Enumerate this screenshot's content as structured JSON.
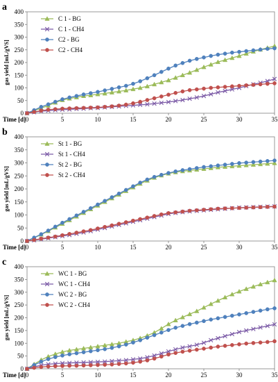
{
  "chart_data": [
    {
      "panel": "a",
      "type": "line",
      "xlabel": "Time [d]",
      "ylabel": "gas yield [mL/gVS]",
      "xlim": [
        0,
        35
      ],
      "ylim": [
        0,
        400
      ],
      "xticks": [
        0,
        5,
        10,
        15,
        20,
        25,
        30,
        35
      ],
      "yticks": [
        0,
        50,
        100,
        150,
        200,
        250,
        300,
        350,
        400
      ],
      "legend_position": "top-left",
      "x": [
        0,
        1,
        2,
        3,
        4,
        5,
        6,
        7,
        8,
        9,
        10,
        11,
        12,
        13,
        14,
        15,
        16,
        17,
        18,
        19,
        20,
        21,
        22,
        23,
        24,
        25,
        26,
        27,
        28,
        29,
        30,
        31,
        32,
        33,
        34,
        35
      ],
      "series": [
        {
          "name": "C 1 - BG",
          "color": "#9bbb59",
          "marker": "triangle",
          "values": [
            0,
            10,
            20,
            30,
            42,
            52,
            58,
            63,
            68,
            71,
            75,
            78,
            82,
            86,
            90,
            95,
            100,
            106,
            114,
            122,
            130,
            140,
            150,
            160,
            171,
            182,
            192,
            202,
            210,
            218,
            226,
            235,
            243,
            251,
            258,
            265
          ]
        },
        {
          "name": "C 1 - CH4",
          "color": "#7b5aa6",
          "marker": "x",
          "values": [
            0,
            4,
            8,
            10,
            12,
            14,
            15,
            17,
            18,
            20,
            21,
            23,
            25,
            27,
            29,
            31,
            33,
            35,
            38,
            41,
            44,
            48,
            52,
            57,
            62,
            68,
            75,
            82,
            88,
            94,
            100,
            107,
            114,
            120,
            127,
            135
          ]
        },
        {
          "name": "C2 - BG",
          "color": "#4f81bd",
          "marker": "circle",
          "values": [
            0,
            12,
            25,
            35,
            45,
            55,
            62,
            68,
            74,
            79,
            84,
            90,
            96,
            102,
            108,
            116,
            126,
            138,
            150,
            163,
            176,
            188,
            198,
            207,
            214,
            220,
            226,
            231,
            235,
            239,
            242,
            245,
            248,
            251,
            254,
            256
          ]
        },
        {
          "name": "C2 - CH4",
          "color": "#c0504d",
          "marker": "circle",
          "values": [
            0,
            5,
            10,
            14,
            16,
            18,
            19,
            20,
            21,
            22,
            23,
            25,
            27,
            30,
            34,
            39,
            45,
            52,
            59,
            66,
            73,
            80,
            86,
            91,
            94,
            97,
            100,
            102,
            104,
            106,
            108,
            110,
            112,
            114,
            116,
            118
          ]
        }
      ]
    },
    {
      "panel": "b",
      "type": "line",
      "xlabel": "Time [d]",
      "ylabel": "gas yield [mL/gVS]",
      "xlim": [
        0,
        35
      ],
      "ylim": [
        0,
        400
      ],
      "xticks": [
        0,
        5,
        10,
        15,
        20,
        25,
        30,
        35
      ],
      "yticks": [
        0,
        50,
        100,
        150,
        200,
        250,
        300,
        350,
        400
      ],
      "legend_position": "top-left",
      "x": [
        0,
        1,
        2,
        3,
        4,
        5,
        6,
        7,
        8,
        9,
        10,
        11,
        12,
        13,
        14,
        15,
        16,
        17,
        18,
        19,
        20,
        21,
        22,
        23,
        24,
        25,
        26,
        27,
        28,
        29,
        30,
        31,
        32,
        33,
        34,
        35
      ],
      "series": [
        {
          "name": "St 1 - BG",
          "color": "#9bbb59",
          "marker": "triangle",
          "values": [
            0,
            12,
            25,
            38,
            52,
            66,
            80,
            94,
            108,
            122,
            136,
            150,
            164,
            178,
            192,
            206,
            220,
            232,
            243,
            252,
            259,
            264,
            268,
            271,
            274,
            277,
            280,
            283,
            285,
            287,
            289,
            291,
            293,
            295,
            297,
            299
          ]
        },
        {
          "name": "St 1 - CH4",
          "color": "#7b5aa6",
          "marker": "x",
          "values": [
            0,
            3,
            7,
            11,
            15,
            19,
            23,
            28,
            33,
            38,
            44,
            50,
            56,
            62,
            68,
            74,
            80,
            86,
            92,
            98,
            104,
            108,
            111,
            114,
            116,
            118,
            120,
            122,
            124,
            126,
            128,
            129,
            130,
            131,
            132,
            133
          ]
        },
        {
          "name": "St 2 - BG",
          "color": "#4f81bd",
          "marker": "circle",
          "values": [
            0,
            13,
            26,
            40,
            55,
            70,
            84,
            98,
            112,
            126,
            140,
            154,
            168,
            182,
            196,
            210,
            224,
            236,
            246,
            254,
            261,
            267,
            272,
            276,
            280,
            284,
            287,
            290,
            293,
            296,
            299,
            301,
            303,
            305,
            307,
            309
          ]
        },
        {
          "name": "St 2 - CH4",
          "color": "#c0504d",
          "marker": "circle",
          "values": [
            0,
            4,
            9,
            13,
            17,
            22,
            27,
            32,
            37,
            42,
            48,
            54,
            60,
            66,
            72,
            78,
            84,
            90,
            96,
            102,
            107,
            110,
            113,
            116,
            118,
            120,
            122,
            124,
            125,
            126,
            127,
            128,
            129,
            130,
            131,
            132
          ]
        }
      ]
    },
    {
      "panel": "c",
      "type": "line",
      "xlabel": "Time [d]",
      "ylabel": "gas yield [mL/gVS]",
      "xlim": [
        0,
        35
      ],
      "ylim": [
        0,
        400
      ],
      "xticks": [
        0,
        5,
        10,
        15,
        20,
        25,
        30,
        35
      ],
      "yticks": [
        0,
        50,
        100,
        150,
        200,
        250,
        300,
        350,
        400
      ],
      "legend_position": "top-left",
      "x": [
        0,
        1,
        2,
        3,
        4,
        5,
        6,
        7,
        8,
        9,
        10,
        11,
        12,
        13,
        14,
        15,
        16,
        17,
        18,
        19,
        20,
        21,
        22,
        23,
        24,
        25,
        26,
        27,
        28,
        29,
        30,
        31,
        32,
        33,
        34,
        35
      ],
      "series": [
        {
          "name": "WC 1 - BG",
          "color": "#9bbb59",
          "marker": "triangle",
          "values": [
            0,
            18,
            35,
            48,
            58,
            66,
            72,
            76,
            80,
            84,
            88,
            92,
            96,
            100,
            106,
            112,
            120,
            130,
            142,
            158,
            175,
            190,
            202,
            214,
            226,
            240,
            254,
            267,
            280,
            292,
            303,
            313,
            322,
            331,
            339,
            347
          ]
        },
        {
          "name": "WC 1 - CH4",
          "color": "#7b5aa6",
          "marker": "x",
          "values": [
            0,
            8,
            14,
            18,
            20,
            22,
            23,
            24,
            25,
            26,
            27,
            28,
            30,
            32,
            34,
            37,
            40,
            45,
            52,
            60,
            68,
            76,
            83,
            88,
            94,
            102,
            112,
            120,
            128,
            136,
            144,
            150,
            156,
            162,
            168,
            174
          ]
        },
        {
          "name": "WC 2 - BG",
          "color": "#4f81bd",
          "marker": "circle",
          "values": [
            0,
            15,
            28,
            38,
            46,
            52,
            57,
            61,
            65,
            69,
            73,
            77,
            82,
            88,
            95,
            103,
            112,
            122,
            132,
            142,
            152,
            161,
            168,
            175,
            181,
            187,
            193,
            198,
            203,
            208,
            213,
            218,
            223,
            228,
            233,
            237
          ]
        },
        {
          "name": "WC 2 - CH4",
          "color": "#c0504d",
          "marker": "circle",
          "values": [
            0,
            4,
            7,
            9,
            10,
            11,
            12,
            12,
            13,
            14,
            15,
            16,
            17,
            19,
            21,
            24,
            28,
            33,
            40,
            48,
            56,
            62,
            67,
            71,
            75,
            79,
            83,
            87,
            90,
            93,
            96,
            99,
            101,
            103,
            105,
            108
          ]
        }
      ]
    }
  ]
}
